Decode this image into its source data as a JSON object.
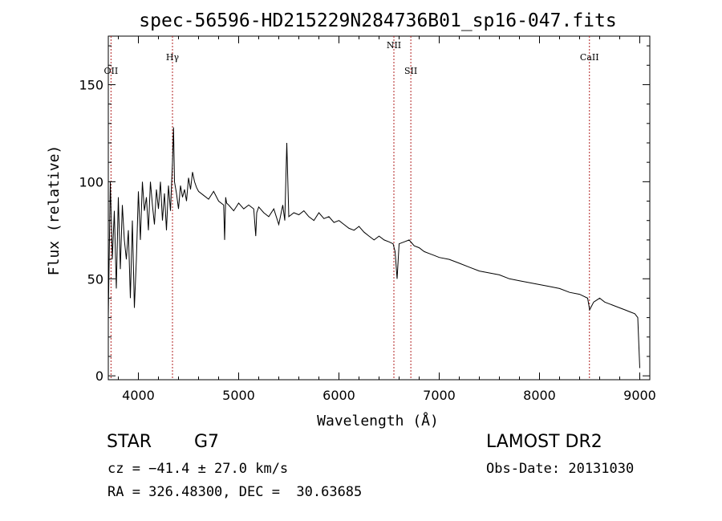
{
  "chart_data": {
    "type": "line",
    "title": "spec-56596-HD215229N284736B01_sp16-047.fits",
    "xlabel": "Wavelength (Å)",
    "ylabel": "Flux (relative)",
    "xlim": [
      3700,
      9100
    ],
    "ylim": [
      -2,
      175
    ],
    "x_ticks": [
      4000,
      5000,
      6000,
      7000,
      8000,
      9000
    ],
    "y_ticks": [
      0,
      50,
      100,
      150
    ],
    "x_tick_labels": [
      "4000",
      "5000",
      "6000",
      "7000",
      "8000",
      "9000"
    ],
    "y_tick_labels": [
      "0",
      "50",
      "100",
      "150"
    ],
    "grid": false,
    "series": [
      {
        "x": [
          3700,
          3720,
          3740,
          3760,
          3780,
          3800,
          3820,
          3840,
          3860,
          3880,
          3900,
          3920,
          3940,
          3960,
          3980,
          4000,
          4020,
          4040,
          4060,
          4080,
          4100,
          4120,
          4140,
          4160,
          4180,
          4200,
          4220,
          4240,
          4260,
          4280,
          4300,
          4320,
          4340,
          4350,
          4360,
          4380,
          4400,
          4420,
          4440,
          4460,
          4480,
          4500,
          4520,
          4540,
          4560,
          4580,
          4600,
          4650,
          4700,
          4750,
          4800,
          4850,
          4860,
          4870,
          4880,
          4900,
          4950,
          5000,
          5050,
          5100,
          5150,
          5170,
          5180,
          5200,
          5250,
          5300,
          5350,
          5400,
          5440,
          5460,
          5480,
          5500,
          5550,
          5600,
          5650,
          5700,
          5750,
          5800,
          5850,
          5900,
          5950,
          6000,
          6050,
          6100,
          6150,
          6200,
          6250,
          6300,
          6350,
          6400,
          6450,
          6500,
          6540,
          6560,
          6580,
          6600,
          6650,
          6700,
          6750,
          6800,
          6850,
          6900,
          6950,
          7000,
          7100,
          7200,
          7300,
          7400,
          7500,
          7600,
          7700,
          7800,
          7900,
          8000,
          8100,
          8200,
          8300,
          8400,
          8480,
          8500,
          8540,
          8600,
          8650,
          8700,
          8750,
          8800,
          8850,
          8900,
          8950,
          8980,
          9000
        ],
        "values": [
          30,
          100,
          60,
          85,
          45,
          92,
          55,
          88,
          70,
          60,
          75,
          40,
          80,
          35,
          60,
          95,
          70,
          100,
          85,
          92,
          75,
          100,
          88,
          78,
          96,
          86,
          100,
          80,
          94,
          75,
          98,
          85,
          110,
          128,
          100,
          94,
          86,
          98,
          92,
          96,
          90,
          102,
          96,
          105,
          100,
          97,
          95,
          93,
          91,
          95,
          90,
          88,
          70,
          92,
          89,
          88,
          85,
          89,
          86,
          88,
          86,
          72,
          84,
          87,
          84,
          82,
          86,
          78,
          88,
          80,
          120,
          82,
          84,
          83,
          85,
          82,
          80,
          84,
          81,
          82,
          79,
          80,
          78,
          76,
          75,
          77,
          74,
          72,
          70,
          72,
          70,
          69,
          68,
          64,
          50,
          68,
          69,
          70,
          67,
          66,
          64,
          63,
          62,
          61,
          60,
          58,
          56,
          54,
          53,
          52,
          50,
          49,
          48,
          47,
          46,
          45,
          43,
          42,
          40,
          34,
          38,
          40,
          38,
          37,
          36,
          35,
          34,
          33,
          32,
          30,
          4
        ]
      }
    ],
    "line_markers": [
      {
        "label": "OII",
        "x": 3727
      },
      {
        "label": "Hγ",
        "x": 4340
      },
      {
        "label": "NII",
        "x": 6548
      },
      {
        "label": "SII",
        "x": 6717
      },
      {
        "label": "CaII",
        "x": 8498
      }
    ],
    "colors": {
      "spectrum": "#000000",
      "line_markers": "#b22222",
      "axes": "#000000"
    }
  },
  "info": {
    "class": "STAR",
    "subclass": "G7",
    "cz": "cz = −41.4 ± 27.0 km/s",
    "coords": "RA = 326.48300, DEC =  30.63685",
    "survey": "LAMOST DR2",
    "obs_date": "Obs-Date: 20131030"
  }
}
